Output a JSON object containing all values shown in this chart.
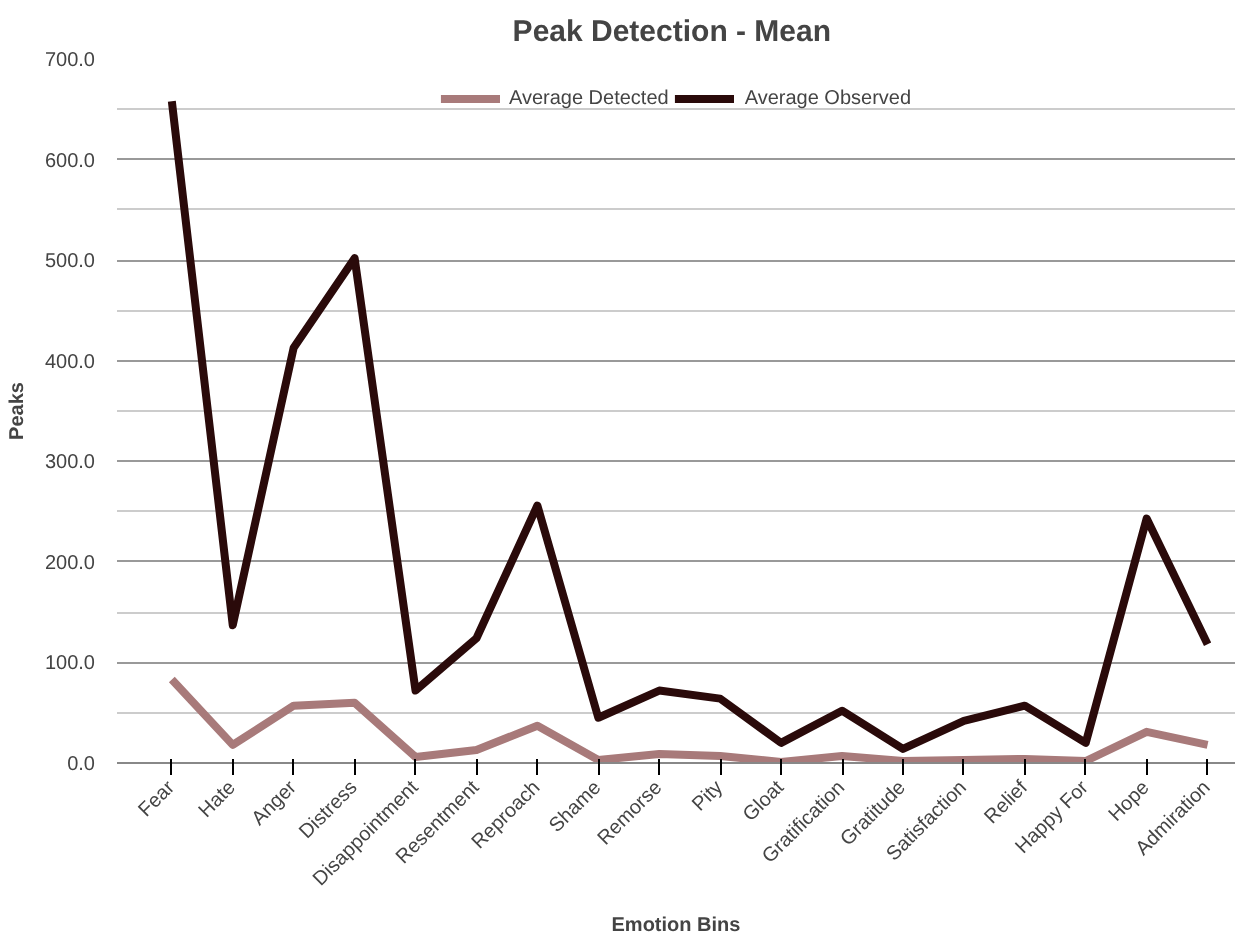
{
  "chart_data": {
    "type": "line",
    "title": "Peak Detection  - Mean",
    "xlabel": "Emotion Bins",
    "ylabel": "Peaks",
    "categories": [
      "Fear",
      "Hate",
      "Anger",
      "Distress",
      "Disappointment",
      "Resentment",
      "Reproach",
      "Shame",
      "Remorse",
      "Pity",
      "Gloat",
      "Gratification",
      "Gratitude",
      "Satisfaction",
      "Relief",
      "Happy For",
      "Hope",
      "Admiration"
    ],
    "series": [
      {
        "name": "Average Detected",
        "color": "#a87a7a",
        "values": [
          83,
          18,
          57,
          60,
          6,
          13,
          37,
          3,
          9,
          7,
          1,
          7,
          2,
          3,
          4,
          2,
          31,
          18
        ]
      },
      {
        "name": "Average Observed",
        "color": "#2a0a0a",
        "values": [
          658,
          137,
          413,
          502,
          72,
          124,
          256,
          45,
          72,
          64,
          20,
          52,
          14,
          42,
          57,
          20,
          243,
          118
        ]
      }
    ],
    "ylim": [
      0,
      700
    ],
    "yticks": [
      {
        "value": 0,
        "label": "0.0"
      },
      {
        "value": 100,
        "label": "100.0"
      },
      {
        "value": 200,
        "label": "200.0"
      },
      {
        "value": 300,
        "label": "300.0"
      },
      {
        "value": 400,
        "label": "400.0"
      },
      {
        "value": 500,
        "label": "500.0"
      },
      {
        "value": 600,
        "label": "600.0"
      },
      {
        "value": 700,
        "label": "700.0"
      }
    ],
    "grid": "y",
    "legend": "top",
    "marker": "none",
    "line_style": "solid"
  }
}
